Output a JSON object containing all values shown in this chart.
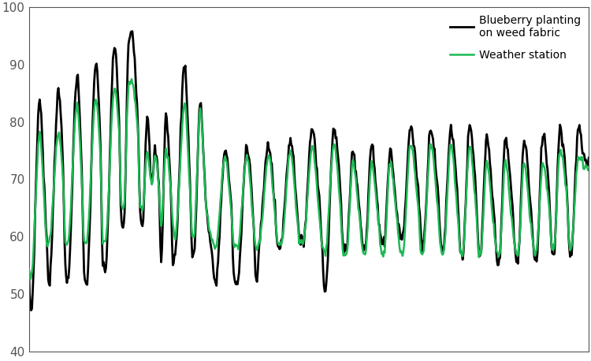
{
  "ylim": [
    40,
    100
  ],
  "yticks": [
    40,
    50,
    60,
    70,
    80,
    90,
    100
  ],
  "green_color": "#1db954",
  "black_color": "#000000",
  "green_label": "Weather station",
  "black_label": "Blueberry planting\non weed fabric",
  "green_lw": 1.8,
  "black_lw": 2.0,
  "figsize": [
    7.5,
    4.58
  ],
  "dpi": 100
}
